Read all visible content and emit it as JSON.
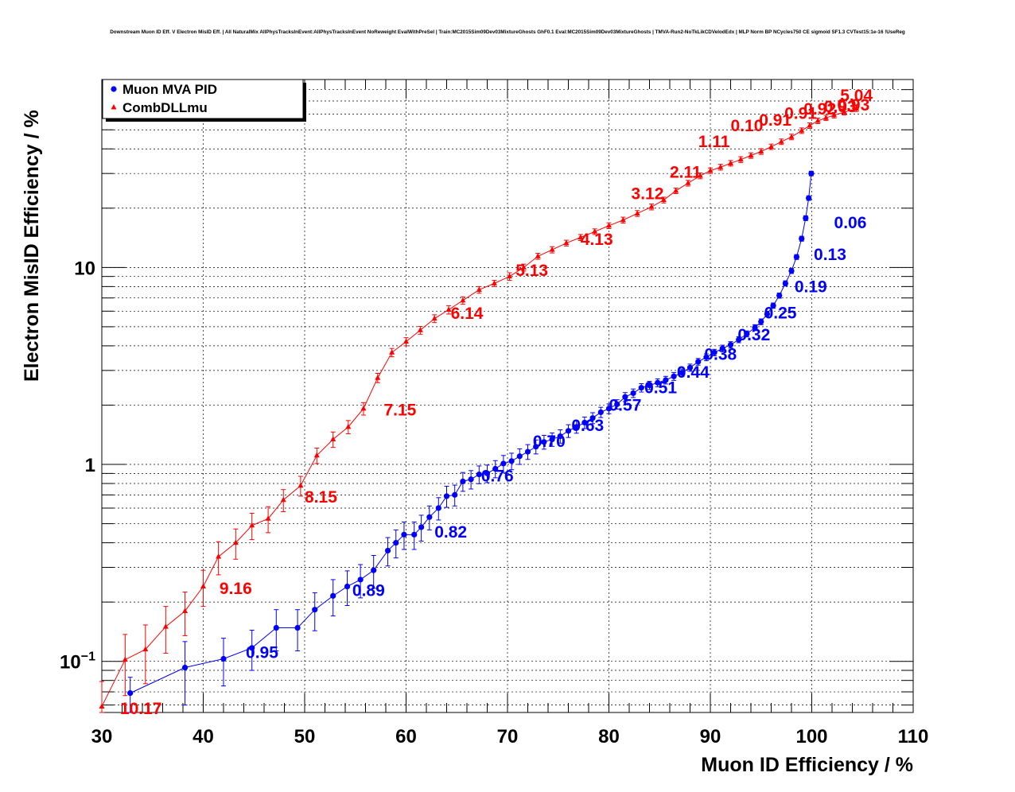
{
  "header": {
    "title": "Downstream Muon ID Eff. V Electron MisID Eff. | All NaturalMix AllPhysTracksInEvent:AllPhysTracksInEvent NoReweight EvalWithPreSel | Train:MC2015Sim09Dev03MixtureGhosts GhF0.1 Eval:MC2015Sim09Dev03MixtureGhosts | TMVA-Run2-NoTkLikCDVelodEdx | MLP Norm BP NCycles750 CE sigmoid SF1.3 CVTest15:1e-16 !UseReg"
  },
  "chart_data": {
    "type": "scatter",
    "title": "Downstream Muon ID Eff. V Electron MisID Eff. | All NaturalMix AllPhysTracksInEvent:AllPhysTracksInEvent NoReweight EvalWithPreSel | Train:MC2015Sim09Dev03MixtureGhosts GhF0.1 Eval:MC2015Sim09Dev03MixtureGhosts | TMVA-Run2-NoTkLikCDVelodEdx | MLP Norm BP NCycles750 CE sigmoid SF1.3 CVTest15:1e-16 !UseReg",
    "xlabel": "Muon ID Efficiency / %",
    "ylabel": "Electron MisID Efficiency / %",
    "xlim": [
      30,
      110
    ],
    "ylim": [
      0.055,
      90
    ],
    "yscale": "log",
    "grid": true,
    "legend_position": "top-left",
    "x_ticks": [
      "30",
      "40",
      "50",
      "60",
      "70",
      "80",
      "90",
      "100",
      "110"
    ],
    "x_tick_values": [
      30,
      40,
      50,
      60,
      70,
      80,
      90,
      100,
      110
    ],
    "y_ticks": [
      {
        "value": 0.1,
        "base": "10",
        "exp": "−1"
      },
      {
        "value": 1,
        "base": "1",
        "exp": ""
      },
      {
        "value": 10,
        "base": "10",
        "exp": ""
      }
    ],
    "series": [
      {
        "name": "Muon MVA PID",
        "color": "#0000ff",
        "marker": "circle",
        "points": [
          [
            32.8,
            0.069,
            0.014
          ],
          [
            38.2,
            0.093,
            0.033
          ],
          [
            42.0,
            0.103,
            0.028
          ],
          [
            44.8,
            0.117,
            0.027
          ],
          [
            47.2,
            0.148,
            0.035
          ],
          [
            49.3,
            0.148,
            0.035
          ],
          [
            51.0,
            0.183,
            0.04
          ],
          [
            52.8,
            0.215,
            0.045
          ],
          [
            54.2,
            0.24,
            0.048
          ],
          [
            55.5,
            0.26,
            0.05
          ],
          [
            56.8,
            0.29,
            0.055
          ],
          [
            58.2,
            0.365,
            0.06
          ],
          [
            59.0,
            0.4,
            0.065
          ],
          [
            59.8,
            0.44,
            0.07
          ],
          [
            60.8,
            0.44,
            0.07
          ],
          [
            61.5,
            0.48,
            0.072
          ],
          [
            62.3,
            0.54,
            0.075
          ],
          [
            63.2,
            0.6,
            0.078
          ],
          [
            64.0,
            0.69,
            0.085
          ],
          [
            64.8,
            0.7,
            0.085
          ],
          [
            65.6,
            0.82,
            0.09
          ],
          [
            66.4,
            0.84,
            0.09
          ],
          [
            67.2,
            0.89,
            0.092
          ],
          [
            68.0,
            0.9,
            0.092
          ],
          [
            68.8,
            0.95,
            0.095
          ],
          [
            69.6,
            1.01,
            0.1
          ],
          [
            70.4,
            1.04,
            0.1
          ],
          [
            71.2,
            1.1,
            0.1
          ],
          [
            72.0,
            1.16,
            0.1
          ],
          [
            72.8,
            1.23,
            0.1
          ],
          [
            73.6,
            1.3,
            0.105
          ],
          [
            74.4,
            1.34,
            0.105
          ],
          [
            75.2,
            1.39,
            0.108
          ],
          [
            76.0,
            1.48,
            0.11
          ],
          [
            76.8,
            1.55,
            0.11
          ],
          [
            77.6,
            1.63,
            0.11
          ],
          [
            78.4,
            1.72,
            0.11
          ],
          [
            79.2,
            1.84,
            0.11
          ],
          [
            80.0,
            1.92,
            0.11
          ],
          [
            80.8,
            2.02,
            0.11
          ],
          [
            81.6,
            2.2,
            0.115
          ],
          [
            82.4,
            2.3,
            0.115
          ],
          [
            83.2,
            2.45,
            0.12
          ],
          [
            84.0,
            2.52,
            0.12
          ],
          [
            84.8,
            2.6,
            0.12
          ],
          [
            85.6,
            2.68,
            0.12
          ],
          [
            86.4,
            2.8,
            0.13
          ],
          [
            87.2,
            2.92,
            0.13
          ],
          [
            88.0,
            3.1,
            0.13
          ],
          [
            88.8,
            3.32,
            0.13
          ],
          [
            89.6,
            3.5,
            0.14
          ],
          [
            90.4,
            3.7,
            0.14
          ],
          [
            91.2,
            3.88,
            0.15
          ],
          [
            92.0,
            4.05,
            0.15
          ],
          [
            92.8,
            4.3,
            0.15
          ],
          [
            93.6,
            4.6,
            0.16
          ],
          [
            94.4,
            4.95,
            0.17
          ],
          [
            95.0,
            5.3,
            0.18
          ],
          [
            95.6,
            5.8,
            0.19
          ],
          [
            96.2,
            6.4,
            0.2
          ],
          [
            96.8,
            7.2,
            0.22
          ],
          [
            97.4,
            8.3,
            0.25
          ],
          [
            98.0,
            9.6,
            0.28
          ],
          [
            98.5,
            11.3,
            0.32
          ],
          [
            99.0,
            14.0,
            0.4
          ],
          [
            99.4,
            17.8,
            0.5
          ],
          [
            99.7,
            22.5,
            0.6
          ],
          [
            99.95,
            30.0,
            0.8
          ]
        ],
        "labels": [
          {
            "text": "0.95",
            "x": 44.2,
            "y": 0.104
          },
          {
            "text": "0.89",
            "x": 54.7,
            "y": 0.215
          },
          {
            "text": "0.82",
            "x": 62.8,
            "y": 0.425
          },
          {
            "text": "0.76",
            "x": 67.4,
            "y": 0.82
          },
          {
            "text": "0.70",
            "x": 72.5,
            "y": 1.23
          },
          {
            "text": "0.63",
            "x": 76.3,
            "y": 1.48
          },
          {
            "text": "0.57",
            "x": 80.0,
            "y": 1.87
          },
          {
            "text": "0.51",
            "x": 83.5,
            "y": 2.3
          },
          {
            "text": "0.44",
            "x": 86.7,
            "y": 2.75
          },
          {
            "text": "0.38",
            "x": 89.4,
            "y": 3.4
          },
          {
            "text": "0.32",
            "x": 92.7,
            "y": 4.27
          },
          {
            "text": "0.25",
            "x": 95.3,
            "y": 5.52
          },
          {
            "text": "0.19",
            "x": 98.3,
            "y": 7.5
          },
          {
            "text": "0.13",
            "x": 100.2,
            "y": 10.9
          },
          {
            "text": "0.06",
            "x": 102.2,
            "y": 15.8
          }
        ]
      },
      {
        "name": "CombDLLmu",
        "color": "#ff0000",
        "marker": "triangle",
        "points": [
          [
            30.0,
            0.059,
            0.02
          ],
          [
            32.3,
            0.102,
            0.035
          ],
          [
            34.3,
            0.115,
            0.038
          ],
          [
            36.3,
            0.15,
            0.04
          ],
          [
            38.2,
            0.18,
            0.045
          ],
          [
            40.0,
            0.24,
            0.05
          ],
          [
            41.5,
            0.34,
            0.065
          ],
          [
            43.2,
            0.4,
            0.07
          ],
          [
            44.8,
            0.49,
            0.075
          ],
          [
            46.4,
            0.53,
            0.08
          ],
          [
            47.9,
            0.66,
            0.085
          ],
          [
            49.6,
            0.78,
            0.09
          ],
          [
            51.2,
            1.11,
            0.1
          ],
          [
            52.8,
            1.34,
            0.12
          ],
          [
            54.3,
            1.55,
            0.12
          ],
          [
            55.8,
            1.92,
            0.14
          ],
          [
            57.2,
            2.75,
            0.15
          ],
          [
            58.6,
            3.7,
            0.18
          ],
          [
            60.0,
            4.2,
            0.2
          ],
          [
            61.4,
            4.8,
            0.22
          ],
          [
            62.8,
            5.5,
            0.25
          ],
          [
            64.2,
            6.1,
            0.3
          ],
          [
            65.6,
            6.8,
            0.3
          ],
          [
            67.2,
            7.7,
            0.3
          ],
          [
            68.7,
            8.3,
            0.3
          ],
          [
            70.2,
            9.0,
            0.4
          ],
          [
            71.6,
            10.0,
            0.4
          ],
          [
            73.0,
            11.4,
            0.4
          ],
          [
            74.4,
            12.3,
            0.45
          ],
          [
            75.8,
            13.3,
            0.45
          ],
          [
            77.2,
            14.2,
            0.5
          ],
          [
            78.6,
            15.2,
            0.5
          ],
          [
            80.0,
            16.3,
            0.55
          ],
          [
            81.4,
            17.4,
            0.6
          ],
          [
            82.8,
            18.8,
            0.65
          ],
          [
            84.2,
            20.3,
            0.7
          ],
          [
            85.4,
            22.0,
            0.75
          ],
          [
            86.6,
            24.5,
            0.8
          ],
          [
            87.8,
            26.8,
            0.9
          ],
          [
            89.0,
            29.2,
            1.0
          ],
          [
            90.0,
            31.0,
            1.0
          ],
          [
            91.0,
            32.3,
            1.1
          ],
          [
            92.0,
            33.8,
            1.1
          ],
          [
            93.0,
            35.3,
            1.2
          ],
          [
            94.0,
            37.0,
            1.2
          ],
          [
            95.0,
            38.8,
            1.3
          ],
          [
            96.0,
            41.0,
            1.3
          ],
          [
            97.0,
            43.5,
            1.4
          ],
          [
            98.0,
            46.0,
            1.5
          ],
          [
            99.0,
            49.5,
            1.6
          ],
          [
            99.8,
            52.5,
            1.7
          ],
          [
            100.6,
            55.5,
            1.8
          ],
          [
            101.4,
            57.5,
            1.8
          ],
          [
            102.2,
            59.3,
            1.9
          ],
          [
            103.2,
            61.5,
            2.0
          ],
          [
            104.4,
            64.0,
            2.1
          ]
        ],
        "labels": [
          {
            "text": "10.17",
            "x": 31.8,
            "y": 0.054
          },
          {
            "text": "9.16",
            "x": 41.6,
            "y": 0.22
          },
          {
            "text": "8.15",
            "x": 50.0,
            "y": 0.64
          },
          {
            "text": "7.15",
            "x": 57.8,
            "y": 1.77
          },
          {
            "text": "6.14",
            "x": 64.4,
            "y": 5.48
          },
          {
            "text": "5.13",
            "x": 70.8,
            "y": 9.07
          },
          {
            "text": "4.13",
            "x": 77.2,
            "y": 13.0
          },
          {
            "text": "3.12",
            "x": 82.2,
            "y": 22.2
          },
          {
            "text": "2.11",
            "x": 86.0,
            "y": 28.6
          },
          {
            "text": "1.11",
            "x": 88.8,
            "y": 40.8
          },
          {
            "text": "0.10",
            "x": 92.0,
            "y": 49.2
          },
          {
            "text": "0.91",
            "x": 94.8,
            "y": 52.5
          },
          {
            "text": "0.91",
            "x": 97.3,
            "y": 56.7
          },
          {
            "text": "0.92",
            "x": 99.2,
            "y": 59.7
          },
          {
            "text": "0.93",
            "x": 102.5,
            "y": 62.7
          },
          {
            "text": "0.93",
            "x": 101.2,
            "y": 61.5
          },
          {
            "text": "5.04",
            "x": 102.8,
            "y": 70.0
          }
        ]
      }
    ]
  }
}
